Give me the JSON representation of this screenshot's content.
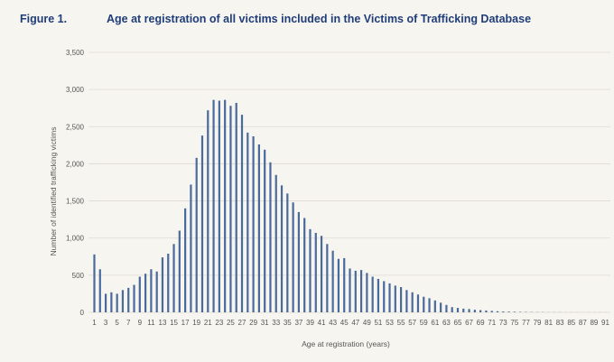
{
  "figure": {
    "number": "Figure 1.",
    "title": "Age at registration of all victims included in the Victims of Trafficking Database"
  },
  "colors": {
    "bar": "#4a6a9c",
    "title": "#1f3d7a",
    "background": "#f7f5ef"
  },
  "chart_data": {
    "type": "bar",
    "xlabel": "Age at registration (years)",
    "ylabel": "Number of identified trafficking victims",
    "ylim": [
      0,
      3500
    ],
    "yticks": [
      0,
      500,
      1000,
      1500,
      2000,
      2500,
      3000,
      3500
    ],
    "ytick_labels": [
      "0",
      "500",
      "1,000",
      "1,500",
      "2,000",
      "2,500",
      "3,000",
      "3,500"
    ],
    "grid": true,
    "legend": "none",
    "categories": [
      1,
      2,
      3,
      4,
      5,
      6,
      7,
      8,
      9,
      10,
      11,
      12,
      13,
      14,
      15,
      16,
      17,
      18,
      19,
      20,
      21,
      22,
      23,
      24,
      25,
      26,
      27,
      28,
      29,
      30,
      31,
      32,
      33,
      34,
      35,
      36,
      37,
      38,
      39,
      40,
      41,
      42,
      43,
      44,
      45,
      46,
      47,
      48,
      49,
      50,
      51,
      52,
      53,
      54,
      55,
      56,
      57,
      58,
      59,
      60,
      61,
      62,
      63,
      64,
      65,
      66,
      67,
      68,
      69,
      70,
      71,
      72,
      73,
      74,
      75,
      76,
      77,
      78,
      79,
      80,
      81,
      82,
      83,
      84,
      85,
      86,
      87,
      88,
      89,
      90,
      91
    ],
    "xtick_labels": [
      "1",
      "3",
      "5",
      "7",
      "9",
      "11",
      "13",
      "15",
      "17",
      "19",
      "21",
      "23",
      "25",
      "27",
      "29",
      "31",
      "33",
      "35",
      "37",
      "39",
      "41",
      "43",
      "45",
      "47",
      "49",
      "51",
      "53",
      "55",
      "57",
      "59",
      "61",
      "63",
      "65",
      "67",
      "69",
      "71",
      "73",
      "75",
      "77",
      "79",
      "81",
      "83",
      "85",
      "87",
      "89",
      "91"
    ],
    "values": [
      780,
      580,
      250,
      270,
      250,
      300,
      330,
      370,
      480,
      520,
      580,
      550,
      740,
      790,
      920,
      1100,
      1400,
      1720,
      2080,
      2380,
      2720,
      2860,
      2850,
      2860,
      2780,
      2820,
      2660,
      2420,
      2370,
      2260,
      2190,
      2020,
      1850,
      1710,
      1600,
      1480,
      1350,
      1270,
      1120,
      1070,
      1030,
      920,
      830,
      720,
      730,
      590,
      560,
      570,
      530,
      480,
      450,
      420,
      390,
      360,
      340,
      300,
      270,
      240,
      210,
      190,
      160,
      130,
      100,
      70,
      60,
      50,
      45,
      35,
      30,
      25,
      20,
      15,
      12,
      10,
      8,
      6,
      5,
      4,
      3,
      3,
      2,
      2,
      2,
      1,
      1,
      1,
      1,
      1,
      1,
      1,
      1
    ]
  }
}
